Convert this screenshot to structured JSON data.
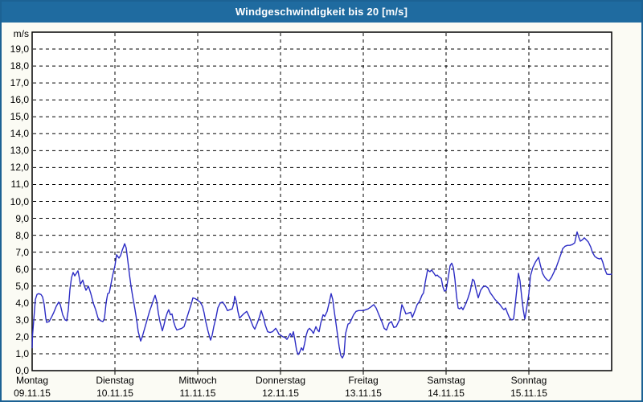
{
  "window": {
    "title": "Windgeschwindigkeit bis 20 [m/s]"
  },
  "colors": {
    "titlebar_bg": "#1f6ba0",
    "titlebar_text": "#ffffff",
    "frame_border": "#1c6294",
    "page_bg": "#fbfbf4",
    "plot_bg": "#ffffff",
    "plot_border": "#000000",
    "grid": "#000000",
    "line": "#2c2cc4",
    "label_text": "#000000"
  },
  "chart_data": {
    "type": "line",
    "title": "Windgeschwindigkeit bis 20 [m/s]",
    "grid": "dashed",
    "legend": "none",
    "y_axis": {
      "unit_label": "m/s",
      "min": 0,
      "max": 20,
      "tick_step": 1,
      "tick_labels": [
        "0,0",
        "1,0",
        "2,0",
        "3,0",
        "4,0",
        "5,0",
        "6,0",
        "7,0",
        "8,0",
        "9,0",
        "10,0",
        "11,0",
        "12,0",
        "13,0",
        "14,0",
        "15,0",
        "16,0",
        "17,0",
        "18,0",
        "19,0"
      ]
    },
    "x_axis": {
      "span_days": 7,
      "days": [
        {
          "name": "Montag",
          "date": "09.11.15"
        },
        {
          "name": "Dienstag",
          "date": "10.11.15"
        },
        {
          "name": "Mittwoch",
          "date": "11.11.15"
        },
        {
          "name": "Donnerstag",
          "date": "12.11.15"
        },
        {
          "name": "Freitag",
          "date": "13.11.15"
        },
        {
          "name": "Samstag",
          "date": "14.11.15"
        },
        {
          "name": "Sonntag",
          "date": "15.11.15"
        }
      ]
    },
    "series": [
      {
        "name": "Windgeschwindigkeit",
        "unit": "m/s",
        "points": [
          [
            0.0,
            1.35
          ],
          [
            0.005,
            2.1
          ],
          [
            0.019,
            3.0
          ],
          [
            0.039,
            4.2
          ],
          [
            0.058,
            4.5
          ],
          [
            0.078,
            4.55
          ],
          [
            0.107,
            4.5
          ],
          [
            0.126,
            4.35
          ],
          [
            0.146,
            3.9
          ],
          [
            0.165,
            3.1
          ],
          [
            0.175,
            2.85
          ],
          [
            0.204,
            2.9
          ],
          [
            0.233,
            3.15
          ],
          [
            0.262,
            3.45
          ],
          [
            0.291,
            3.8
          ],
          [
            0.32,
            4.05
          ],
          [
            0.34,
            3.9
          ],
          [
            0.369,
            3.3
          ],
          [
            0.398,
            3.0
          ],
          [
            0.417,
            2.95
          ],
          [
            0.437,
            3.6
          ],
          [
            0.456,
            4.8
          ],
          [
            0.476,
            5.5
          ],
          [
            0.495,
            5.8
          ],
          [
            0.515,
            5.6
          ],
          [
            0.534,
            5.75
          ],
          [
            0.553,
            5.9
          ],
          [
            0.573,
            5.4
          ],
          [
            0.583,
            5.1
          ],
          [
            0.612,
            5.35
          ],
          [
            0.631,
            5.0
          ],
          [
            0.65,
            4.75
          ],
          [
            0.68,
            5.0
          ],
          [
            0.709,
            4.55
          ],
          [
            0.738,
            4.0
          ],
          [
            0.767,
            3.6
          ],
          [
            0.796,
            3.1
          ],
          [
            0.825,
            2.95
          ],
          [
            0.854,
            2.9
          ],
          [
            0.874,
            3.1
          ],
          [
            0.893,
            4.0
          ],
          [
            0.913,
            4.55
          ],
          [
            0.932,
            4.6
          ],
          [
            0.951,
            5.1
          ],
          [
            0.971,
            5.6
          ],
          [
            1.0,
            6.2
          ],
          [
            1.019,
            6.85
          ],
          [
            1.049,
            6.65
          ],
          [
            1.068,
            6.8
          ],
          [
            1.087,
            7.1
          ],
          [
            1.117,
            7.5
          ],
          [
            1.136,
            7.25
          ],
          [
            1.155,
            6.5
          ],
          [
            1.175,
            5.7
          ],
          [
            1.194,
            5.0
          ],
          [
            1.214,
            4.4
          ],
          [
            1.243,
            3.6
          ],
          [
            1.262,
            3.0
          ],
          [
            1.282,
            2.3
          ],
          [
            1.311,
            1.75
          ],
          [
            1.33,
            2.0
          ],
          [
            1.359,
            2.5
          ],
          [
            1.388,
            3.0
          ],
          [
            1.417,
            3.5
          ],
          [
            1.447,
            3.9
          ],
          [
            1.466,
            4.2
          ],
          [
            1.485,
            4.45
          ],
          [
            1.505,
            4.1
          ],
          [
            1.524,
            3.4
          ],
          [
            1.544,
            2.9
          ],
          [
            1.573,
            2.35
          ],
          [
            1.592,
            2.7
          ],
          [
            1.612,
            3.1
          ],
          [
            1.631,
            3.4
          ],
          [
            1.65,
            3.6
          ],
          [
            1.67,
            3.3
          ],
          [
            1.689,
            3.35
          ],
          [
            1.709,
            2.9
          ],
          [
            1.728,
            2.6
          ],
          [
            1.748,
            2.4
          ],
          [
            1.777,
            2.45
          ],
          [
            1.806,
            2.5
          ],
          [
            1.835,
            2.6
          ],
          [
            1.864,
            3.05
          ],
          [
            1.893,
            3.5
          ],
          [
            1.922,
            3.95
          ],
          [
            1.942,
            4.3
          ],
          [
            1.971,
            4.25
          ],
          [
            2.0,
            4.15
          ],
          [
            2.029,
            4.05
          ],
          [
            2.058,
            3.8
          ],
          [
            2.078,
            3.4
          ],
          [
            2.097,
            2.9
          ],
          [
            2.126,
            2.3
          ],
          [
            2.155,
            1.8
          ],
          [
            2.175,
            2.1
          ],
          [
            2.194,
            2.6
          ],
          [
            2.223,
            3.2
          ],
          [
            2.243,
            3.7
          ],
          [
            2.272,
            4.0
          ],
          [
            2.301,
            4.05
          ],
          [
            2.33,
            3.85
          ],
          [
            2.359,
            3.55
          ],
          [
            2.388,
            3.6
          ],
          [
            2.417,
            3.65
          ],
          [
            2.437,
            4.0
          ],
          [
            2.447,
            4.4
          ],
          [
            2.466,
            4.1
          ],
          [
            2.485,
            3.5
          ],
          [
            2.505,
            3.1
          ],
          [
            2.524,
            3.2
          ],
          [
            2.553,
            3.35
          ],
          [
            2.592,
            3.5
          ],
          [
            2.621,
            3.2
          ],
          [
            2.65,
            2.85
          ],
          [
            2.67,
            2.6
          ],
          [
            2.689,
            2.45
          ],
          [
            2.718,
            2.8
          ],
          [
            2.748,
            3.2
          ],
          [
            2.767,
            3.55
          ],
          [
            2.796,
            3.1
          ],
          [
            2.816,
            2.7
          ],
          [
            2.845,
            2.3
          ],
          [
            2.874,
            2.25
          ],
          [
            2.903,
            2.3
          ],
          [
            2.922,
            2.4
          ],
          [
            2.942,
            2.5
          ],
          [
            2.961,
            2.35
          ],
          [
            2.981,
            2.15
          ],
          [
            3.0,
            2.1
          ],
          [
            3.029,
            2.0
          ],
          [
            3.058,
            1.95
          ],
          [
            3.078,
            1.85
          ],
          [
            3.097,
            2.0
          ],
          [
            3.117,
            2.2
          ],
          [
            3.136,
            2.0
          ],
          [
            3.155,
            2.3
          ],
          [
            3.175,
            1.8
          ],
          [
            3.194,
            1.2
          ],
          [
            3.214,
            0.95
          ],
          [
            3.233,
            1.1
          ],
          [
            3.252,
            1.35
          ],
          [
            3.272,
            1.2
          ],
          [
            3.291,
            1.6
          ],
          [
            3.311,
            2.1
          ],
          [
            3.33,
            2.4
          ],
          [
            3.35,
            2.5
          ],
          [
            3.379,
            2.35
          ],
          [
            3.398,
            2.2
          ],
          [
            3.427,
            2.6
          ],
          [
            3.447,
            2.4
          ],
          [
            3.466,
            2.3
          ],
          [
            3.485,
            2.8
          ],
          [
            3.515,
            3.3
          ],
          [
            3.534,
            3.2
          ],
          [
            3.563,
            3.5
          ],
          [
            3.583,
            3.9
          ],
          [
            3.612,
            4.55
          ],
          [
            3.631,
            4.2
          ],
          [
            3.65,
            3.5
          ],
          [
            3.67,
            2.8
          ],
          [
            3.689,
            2.1
          ],
          [
            3.709,
            1.4
          ],
          [
            3.728,
            0.9
          ],
          [
            3.748,
            0.75
          ],
          [
            3.767,
            0.95
          ],
          [
            3.786,
            2.2
          ],
          [
            3.816,
            2.75
          ],
          [
            3.835,
            2.8
          ],
          [
            3.854,
            3.0
          ],
          [
            3.883,
            3.3
          ],
          [
            3.913,
            3.5
          ],
          [
            3.942,
            3.55
          ],
          [
            3.971,
            3.55
          ],
          [
            4.0,
            3.55
          ],
          [
            4.029,
            3.6
          ],
          [
            4.058,
            3.65
          ],
          [
            4.087,
            3.75
          ],
          [
            4.126,
            3.9
          ],
          [
            4.155,
            3.7
          ],
          [
            4.184,
            3.35
          ],
          [
            4.223,
            2.9
          ],
          [
            4.252,
            2.5
          ],
          [
            4.281,
            2.4
          ],
          [
            4.311,
            2.8
          ],
          [
            4.34,
            2.9
          ],
          [
            4.369,
            2.55
          ],
          [
            4.398,
            2.6
          ],
          [
            4.437,
            3.0
          ],
          [
            4.466,
            3.9
          ],
          [
            4.495,
            3.6
          ],
          [
            4.515,
            3.35
          ],
          [
            4.544,
            3.4
          ],
          [
            4.573,
            3.45
          ],
          [
            4.592,
            3.15
          ],
          [
            4.621,
            3.5
          ],
          [
            4.65,
            3.9
          ],
          [
            4.68,
            4.1
          ],
          [
            4.709,
            4.45
          ],
          [
            4.728,
            4.6
          ],
          [
            4.748,
            5.2
          ],
          [
            4.777,
            5.95
          ],
          [
            4.806,
            5.85
          ],
          [
            4.825,
            5.95
          ],
          [
            4.854,
            5.75
          ],
          [
            4.874,
            5.6
          ],
          [
            4.893,
            5.65
          ],
          [
            4.913,
            5.55
          ],
          [
            4.942,
            5.45
          ],
          [
            4.961,
            4.95
          ],
          [
            4.981,
            4.7
          ],
          [
            5.0,
            4.75
          ],
          [
            5.019,
            5.3
          ],
          [
            5.049,
            6.2
          ],
          [
            5.068,
            6.35
          ],
          [
            5.087,
            6.1
          ],
          [
            5.107,
            5.4
          ],
          [
            5.126,
            4.4
          ],
          [
            5.146,
            3.7
          ],
          [
            5.165,
            3.65
          ],
          [
            5.184,
            3.75
          ],
          [
            5.204,
            3.6
          ],
          [
            5.233,
            3.9
          ],
          [
            5.262,
            4.25
          ],
          [
            5.291,
            4.7
          ],
          [
            5.32,
            5.4
          ],
          [
            5.34,
            5.3
          ],
          [
            5.359,
            4.85
          ],
          [
            5.388,
            4.3
          ],
          [
            5.417,
            4.75
          ],
          [
            5.447,
            4.95
          ],
          [
            5.476,
            5.0
          ],
          [
            5.505,
            4.9
          ],
          [
            5.534,
            4.6
          ],
          [
            5.563,
            4.4
          ],
          [
            5.592,
            4.2
          ],
          [
            5.621,
            4.05
          ],
          [
            5.65,
            3.9
          ],
          [
            5.68,
            3.7
          ],
          [
            5.699,
            3.6
          ],
          [
            5.718,
            3.7
          ],
          [
            5.738,
            3.45
          ],
          [
            5.767,
            3.1
          ],
          [
            5.796,
            3.0
          ],
          [
            5.816,
            3.05
          ],
          [
            5.835,
            3.9
          ],
          [
            5.854,
            4.8
          ],
          [
            5.874,
            5.75
          ],
          [
            5.893,
            5.3
          ],
          [
            5.913,
            4.4
          ],
          [
            5.932,
            3.6
          ],
          [
            5.951,
            3.05
          ],
          [
            5.971,
            3.6
          ],
          [
            6.0,
            4.55
          ],
          [
            6.019,
            5.6
          ],
          [
            6.049,
            6.1
          ],
          [
            6.078,
            6.4
          ],
          [
            6.097,
            6.55
          ],
          [
            6.117,
            6.7
          ],
          [
            6.136,
            6.3
          ],
          [
            6.165,
            5.75
          ],
          [
            6.194,
            5.5
          ],
          [
            6.223,
            5.35
          ],
          [
            6.243,
            5.3
          ],
          [
            6.272,
            5.5
          ],
          [
            6.301,
            5.8
          ],
          [
            6.33,
            6.1
          ],
          [
            6.359,
            6.5
          ],
          [
            6.388,
            6.9
          ],
          [
            6.408,
            7.2
          ],
          [
            6.437,
            7.35
          ],
          [
            6.466,
            7.4
          ],
          [
            6.495,
            7.4
          ],
          [
            6.524,
            7.45
          ],
          [
            6.553,
            7.55
          ],
          [
            6.583,
            8.2
          ],
          [
            6.602,
            7.9
          ],
          [
            6.621,
            7.65
          ],
          [
            6.65,
            7.75
          ],
          [
            6.67,
            7.85
          ],
          [
            6.699,
            7.7
          ],
          [
            6.718,
            7.6
          ],
          [
            6.748,
            7.3
          ],
          [
            6.767,
            7.0
          ],
          [
            6.796,
            6.75
          ],
          [
            6.825,
            6.65
          ],
          [
            6.854,
            6.6
          ],
          [
            6.874,
            6.65
          ],
          [
            6.893,
            6.4
          ],
          [
            6.913,
            6.05
          ],
          [
            6.942,
            5.7
          ],
          [
            6.971,
            5.68
          ],
          [
            7.0,
            5.7
          ]
        ]
      }
    ]
  }
}
